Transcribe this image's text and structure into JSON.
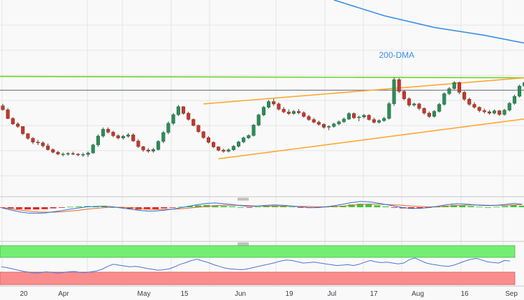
{
  "colors": {
    "background": "#f9f9f9",
    "grid": "#e3e5e8",
    "bull": "#2e8b57",
    "bear": "#c0392b",
    "wick": "#444444",
    "dma": "#3a8ee6",
    "resistance": "#6fd52a",
    "channel": "#ffa733",
    "hline": "#5d6470",
    "support_short": "#5cab62",
    "macd_line": "#2f6fd6",
    "signal_line": "#e0672b",
    "hist_pos": "#37c837",
    "hist_neg": "#e02424",
    "rsi_line": "#4a74d6",
    "rsi_overbought": "#73ee73",
    "rsi_oversold": "#f98d8d",
    "separator": "#c4c7cc"
  },
  "chart_data": [
    {
      "type": "candlestick",
      "panel": "price",
      "grid": true,
      "ylim": [
        0,
        100
      ],
      "x_ticks": [
        "20",
        "Apr",
        "May",
        "15",
        "Jun",
        "19",
        "Jul",
        "17",
        "Aug",
        "16",
        "Sep"
      ],
      "annotations": [
        "200-DMA"
      ],
      "series": [
        {
          "name": "200-DMA",
          "kind": "line",
          "points": [
            [
              66,
              100
            ],
            [
              76,
              92
            ],
            [
              86,
              86
            ],
            [
              96,
              82
            ],
            [
              108,
              76
            ],
            [
              112,
              74
            ]
          ]
        },
        {
          "name": "",
          "kind": "line",
          "role": "horizontal-resistance",
          "points": [
            [
              -1,
              61
            ],
            [
              112,
              60.3
            ]
          ]
        },
        {
          "name": "",
          "kind": "line",
          "role": "horizontal-level",
          "points": [
            [
              -1,
              54
            ],
            [
              112,
              54
            ]
          ]
        },
        {
          "name": "",
          "kind": "line",
          "role": "channel-top",
          "points": [
            [
              40,
              47
            ],
            [
              112,
              62
            ]
          ]
        },
        {
          "name": "",
          "kind": "line",
          "role": "channel-bottom",
          "points": [
            [
              43,
              19
            ],
            [
              112,
              42
            ]
          ]
        },
        {
          "name": "",
          "kind": "line",
          "role": "short-term-support",
          "points": [
            [
              104,
              40
            ],
            [
              112,
              51
            ]
          ]
        }
      ],
      "ohlc": [
        [
          46.0,
          47.0,
          43.6,
          44.0
        ],
        [
          44.0,
          44.9,
          39.2,
          39.6
        ],
        [
          39.6,
          40.2,
          36.3,
          36.8
        ],
        [
          36.8,
          37.6,
          34.8,
          35.5
        ],
        [
          35.5,
          35.5,
          31.1,
          31.8
        ],
        [
          31.8,
          32.1,
          28.7,
          29.4
        ],
        [
          29.4,
          30.1,
          26.5,
          27.5
        ],
        [
          27.5,
          28.7,
          26.0,
          27.1
        ],
        [
          27.1,
          27.8,
          24.8,
          25.6
        ],
        [
          25.6,
          26.8,
          23.2,
          23.7
        ],
        [
          23.7,
          24.3,
          21.8,
          22.4
        ],
        [
          22.4,
          23.0,
          20.8,
          21.4
        ],
        [
          21.4,
          22.2,
          20.2,
          21.4
        ],
        [
          21.4,
          22.4,
          20.6,
          21.7
        ],
        [
          21.7,
          22.6,
          20.9,
          21.4
        ],
        [
          21.4,
          21.9,
          20.3,
          21.0
        ],
        [
          21.0,
          22.1,
          20.0,
          21.2
        ],
        [
          21.2,
          22.7,
          20.0,
          22.0
        ],
        [
          22.0,
          26.7,
          21.6,
          26.1
        ],
        [
          26.1,
          31.5,
          25.2,
          30.6
        ],
        [
          30.6,
          35.0,
          29.8,
          34.1
        ],
        [
          34.1,
          35.0,
          31.9,
          32.6
        ],
        [
          32.6,
          33.3,
          30.0,
          30.8
        ],
        [
          30.8,
          31.5,
          28.9,
          29.6
        ],
        [
          29.6,
          31.2,
          28.8,
          30.5
        ],
        [
          30.5,
          32.1,
          29.8,
          31.2
        ],
        [
          31.2,
          32.0,
          27.6,
          28.1
        ],
        [
          28.1,
          29.0,
          24.5,
          25.2
        ],
        [
          25.2,
          25.6,
          22.6,
          23.5
        ],
        [
          23.5,
          24.4,
          22.0,
          22.9
        ],
        [
          22.9,
          24.5,
          22.1,
          23.7
        ],
        [
          23.7,
          28.5,
          23.2,
          27.9
        ],
        [
          27.9,
          33.2,
          27.0,
          32.4
        ],
        [
          32.4,
          38.0,
          31.5,
          37.1
        ],
        [
          37.1,
          42.4,
          36.2,
          41.5
        ],
        [
          41.5,
          46.5,
          40.8,
          45.6
        ],
        [
          45.6,
          45.8,
          41.5,
          42.2
        ],
        [
          42.2,
          43.0,
          38.5,
          39.1
        ],
        [
          39.1,
          39.6,
          35.5,
          36.0
        ],
        [
          36.0,
          36.5,
          32.2,
          32.8
        ],
        [
          32.8,
          33.2,
          29.2,
          29.8
        ],
        [
          29.8,
          30.6,
          26.8,
          27.4
        ],
        [
          27.4,
          27.9,
          24.5,
          25.1
        ],
        [
          25.1,
          25.4,
          22.8,
          23.4
        ],
        [
          23.4,
          24.2,
          22.1,
          22.8
        ],
        [
          22.8,
          24.3,
          22.2,
          23.6
        ],
        [
          23.6,
          26.0,
          23.0,
          25.4
        ],
        [
          25.4,
          28.2,
          24.8,
          27.6
        ],
        [
          27.6,
          30.3,
          27.0,
          29.7
        ],
        [
          29.7,
          31.5,
          29.0,
          30.9
        ],
        [
          30.9,
          36.8,
          30.4,
          36.2
        ],
        [
          36.2,
          42.0,
          35.6,
          41.4
        ],
        [
          41.4,
          46.0,
          40.7,
          45.3
        ],
        [
          45.3,
          49.0,
          44.6,
          48.2
        ],
        [
          48.2,
          49.6,
          46.0,
          47.0
        ],
        [
          47.0,
          47.8,
          43.6,
          44.3
        ],
        [
          44.3,
          45.4,
          42.2,
          42.9
        ],
        [
          42.9,
          44.2,
          41.3,
          42.1
        ],
        [
          42.1,
          43.9,
          41.5,
          43.2
        ],
        [
          43.2,
          44.4,
          41.7,
          42.5
        ],
        [
          42.5,
          43.2,
          40.0,
          40.6
        ],
        [
          40.6,
          41.4,
          38.3,
          39.0
        ],
        [
          39.0,
          39.9,
          37.1,
          37.7
        ],
        [
          37.7,
          38.5,
          35.9,
          36.6
        ],
        [
          36.6,
          37.1,
          34.4,
          35.1
        ],
        [
          35.1,
          36.1,
          33.6,
          35.5
        ],
        [
          35.5,
          37.4,
          34.9,
          36.8
        ],
        [
          36.8,
          38.6,
          36.1,
          37.9
        ],
        [
          37.9,
          40.1,
          37.3,
          39.3
        ],
        [
          39.3,
          42.8,
          38.8,
          42.1
        ],
        [
          42.1,
          42.6,
          39.3,
          39.9
        ],
        [
          39.9,
          41.0,
          38.1,
          40.3
        ],
        [
          40.3,
          41.9,
          39.6,
          41.2
        ],
        [
          41.2,
          41.8,
          38.5,
          39.0
        ],
        [
          39.0,
          40.0,
          37.0,
          37.6
        ],
        [
          37.6,
          39.1,
          36.9,
          38.5
        ],
        [
          38.5,
          40.4,
          37.8,
          39.6
        ],
        [
          39.6,
          48.0,
          39.0,
          47.1
        ],
        [
          47.1,
          60.5,
          46.0,
          59.4
        ],
        [
          59.4,
          60.2,
          52.5,
          53.4
        ],
        [
          53.4,
          54.0,
          48.8,
          49.6
        ],
        [
          49.6,
          50.3,
          45.5,
          46.4
        ],
        [
          46.4,
          47.7,
          45.6,
          47.0
        ],
        [
          47.0,
          47.6,
          43.8,
          44.7
        ],
        [
          44.7,
          45.2,
          41.5,
          42.3
        ],
        [
          42.3,
          43.1,
          39.8,
          40.6
        ],
        [
          40.6,
          43.8,
          40.0,
          43.2
        ],
        [
          43.2,
          47.5,
          42.6,
          46.8
        ],
        [
          46.8,
          52.9,
          46.1,
          52.2
        ],
        [
          52.2,
          55.6,
          51.5,
          54.8
        ],
        [
          54.8,
          58.6,
          54.3,
          57.9
        ],
        [
          57.9,
          58.4,
          52.0,
          52.9
        ],
        [
          52.9,
          53.6,
          48.6,
          49.4
        ],
        [
          49.4,
          50.2,
          46.0,
          46.8
        ],
        [
          46.8,
          47.9,
          44.6,
          45.3
        ],
        [
          45.3,
          45.7,
          42.7,
          43.6
        ],
        [
          43.6,
          44.6,
          42.1,
          43.0
        ],
        [
          43.0,
          43.9,
          41.5,
          42.3
        ],
        [
          42.3,
          44.2,
          41.7,
          43.5
        ],
        [
          43.5,
          44.0,
          40.9,
          41.6
        ],
        [
          41.6,
          44.5,
          41.0,
          43.8
        ],
        [
          43.8,
          48.0,
          43.2,
          47.3
        ],
        [
          47.3,
          51.7,
          46.6,
          50.9
        ],
        [
          50.9,
          56.8,
          50.3,
          56.1
        ],
        [
          56.1,
          58.5,
          55.4,
          57.9
        ],
        [
          57.9,
          59.1,
          55.0,
          55.6
        ],
        [
          55.6,
          56.2,
          53.3,
          54.1
        ],
        [
          54.1,
          54.6,
          52.8,
          53.6
        ],
        [
          53.6,
          55.0,
          53.1,
          54.5
        ]
      ]
    },
    {
      "type": "bar",
      "panel": "macd",
      "series": [
        {
          "name": "",
          "kind": "histogram",
          "values": [
            -0.1,
            -0.3,
            -0.5,
            -0.6,
            -0.6,
            -0.5,
            -0.3,
            -0.1,
            0.1,
            0.2,
            0.3,
            0.3,
            0.2,
            0.0,
            -0.2,
            -0.4,
            -0.6,
            -0.6,
            -0.5,
            -0.3,
            -0.1,
            0.1,
            0.3,
            0.5,
            0.6,
            0.5,
            0.3,
            0.2,
            0.0,
            -0.1,
            0.1,
            0.3,
            0.4,
            0.3,
            0.1,
            -0.1,
            -0.2,
            -0.1,
            0.1,
            0.2,
            0.4,
            0.7,
            0.9,
            0.8,
            0.5,
            0.2,
            -0.1,
            -0.3,
            -0.4,
            -0.3,
            -0.1,
            0.1,
            0.4,
            0.6,
            0.5,
            0.3,
            0.1,
            0.0,
            0.1,
            0.3,
            0.6,
            0.4
          ]
        },
        {
          "name": "",
          "kind": "line",
          "role": "macd",
          "values": [
            -0.2,
            -0.7,
            -1.2,
            -1.5,
            -1.6,
            -1.5,
            -1.2,
            -0.9,
            -0.5,
            -0.2,
            0.1,
            0.2,
            0.3,
            0.1,
            -0.2,
            -0.5,
            -0.8,
            -1.0,
            -1.0,
            -0.8,
            -0.5,
            -0.1,
            0.3,
            0.7,
            1.0,
            1.1,
            0.9,
            0.7,
            0.4,
            0.2,
            0.3,
            0.5,
            0.6,
            0.5,
            0.3,
            0.1,
            -0.1,
            -0.1,
            0.1,
            0.4,
            0.8,
            1.2,
            1.5,
            1.4,
            1.1,
            0.7,
            0.3,
            -0.1,
            -0.3,
            -0.3,
            -0.1,
            0.2,
            0.6,
            0.9,
            0.9,
            0.7,
            0.5,
            0.4,
            0.5,
            0.7,
            1.0,
            0.8
          ]
        },
        {
          "name": "",
          "kind": "line",
          "role": "signal",
          "values": [
            -0.1,
            -0.4,
            -0.7,
            -1.0,
            -1.2,
            -1.3,
            -1.3,
            -1.2,
            -1.0,
            -0.8,
            -0.5,
            -0.3,
            -0.1,
            0.0,
            0.0,
            -0.1,
            -0.3,
            -0.5,
            -0.6,
            -0.6,
            -0.5,
            -0.4,
            -0.2,
            0.0,
            0.2,
            0.4,
            0.5,
            0.5,
            0.5,
            0.4,
            0.3,
            0.3,
            0.3,
            0.3,
            0.3,
            0.2,
            0.2,
            0.1,
            0.1,
            0.2,
            0.3,
            0.5,
            0.7,
            0.8,
            0.8,
            0.7,
            0.6,
            0.5,
            0.3,
            0.2,
            0.1,
            0.1,
            0.2,
            0.4,
            0.5,
            0.6,
            0.6,
            0.5,
            0.5,
            0.5,
            0.6,
            0.7
          ]
        }
      ]
    },
    {
      "type": "line",
      "panel": "rsi",
      "ylim": [
        0,
        100
      ],
      "series": [
        {
          "name": "",
          "role": "rsi",
          "values": [
            46,
            44,
            41,
            38,
            35,
            33,
            31,
            32,
            34,
            33,
            31,
            32,
            34,
            35,
            33,
            32,
            34,
            36,
            40,
            47,
            52,
            50,
            48,
            46,
            47,
            45,
            42,
            40,
            38,
            39,
            41,
            46,
            52,
            56,
            61,
            64,
            60,
            56,
            51,
            47,
            43,
            41,
            40,
            39,
            41,
            44,
            47,
            50,
            53,
            56,
            60,
            62,
            61,
            58,
            55,
            56,
            57,
            55,
            53,
            51,
            49,
            50,
            51,
            49,
            52,
            57,
            61,
            58,
            56,
            57,
            55,
            53,
            55,
            63,
            67,
            61,
            55,
            52,
            50,
            48,
            47,
            50,
            55,
            60,
            64,
            66,
            62,
            58,
            56,
            55,
            61,
            60
          ]
        }
      ]
    }
  ]
}
